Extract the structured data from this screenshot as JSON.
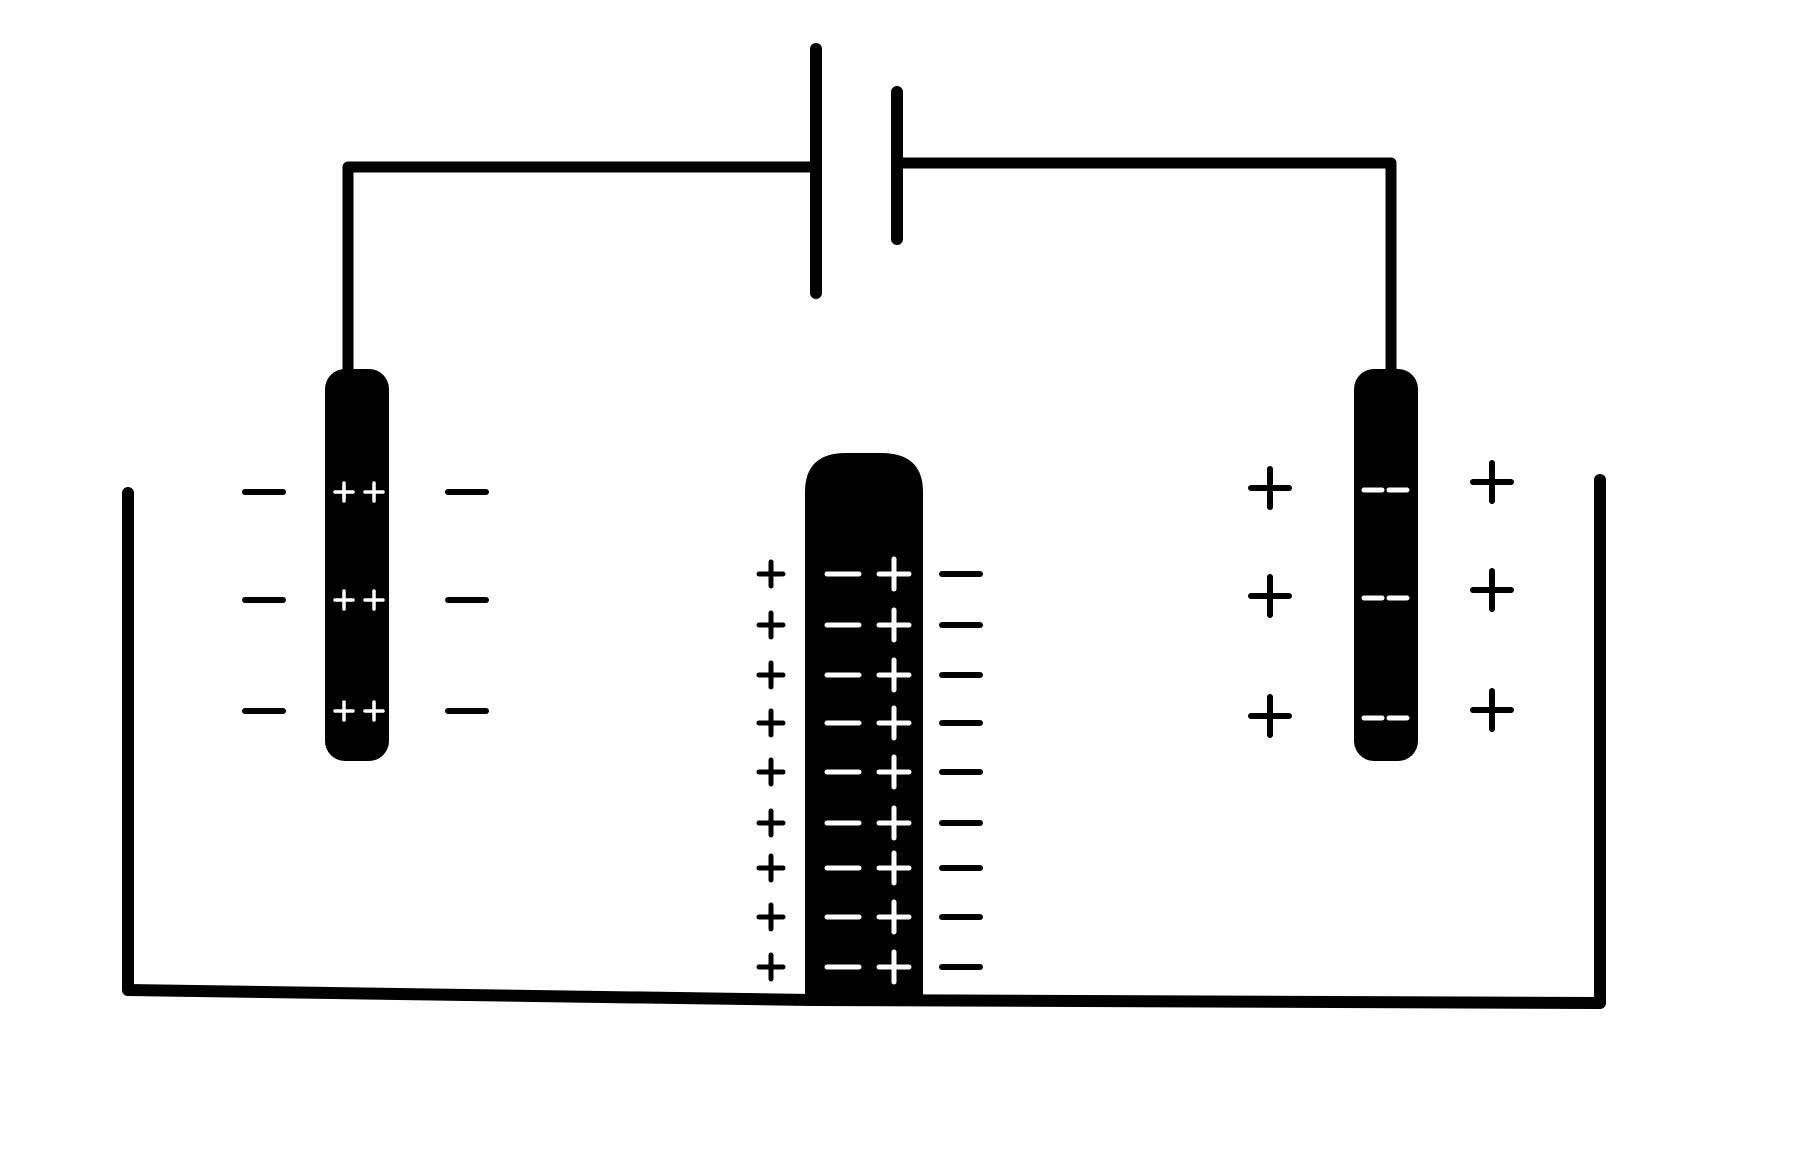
{
  "diagram": {
    "type": "electrochemical-cell",
    "colors": {
      "background": "#ffffff",
      "ink": "#000000",
      "on_electrode": "#ffffff"
    },
    "battery": {
      "long_plate": "positive",
      "short_plate": "negative"
    },
    "left_electrode": {
      "inner_charge": "+",
      "outer_charge": "-",
      "rows": 3
    },
    "right_electrode": {
      "inner_charge": "-",
      "outer_charge": "+",
      "rows": 3
    },
    "middle_electrode": {
      "left_face_charge": "-",
      "right_face_charge": "+",
      "left_solution_charge": "+",
      "right_solution_charge": "-",
      "rows": 9
    }
  }
}
